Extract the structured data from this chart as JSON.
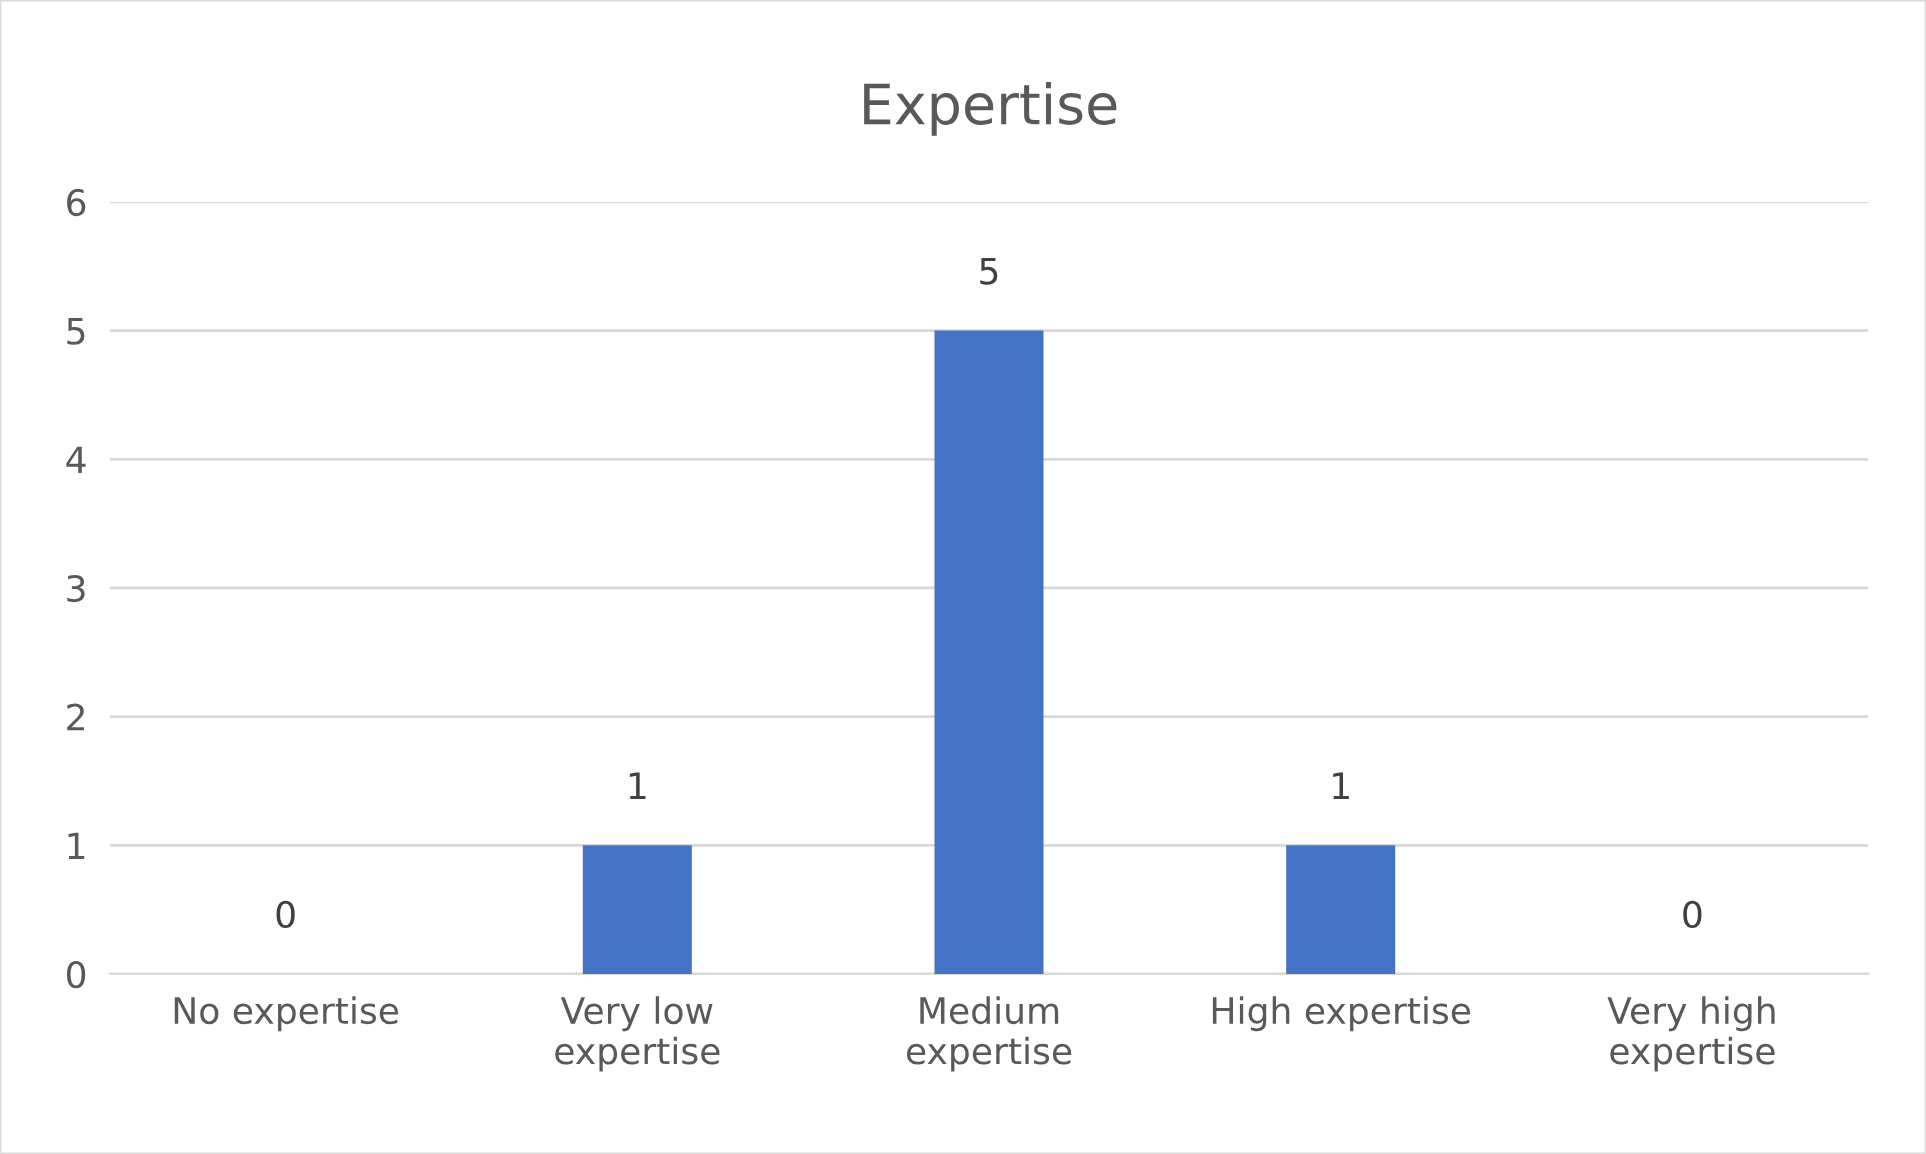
{
  "chart_data": {
    "type": "bar",
    "title": "Expertise",
    "categories": [
      "No expertise",
      "Very low\nexpertise",
      "Medium\nexpertise",
      "High expertise",
      "Very high\nexpertise"
    ],
    "values": [
      0,
      1,
      5,
      1,
      0
    ],
    "color": "#4472c4",
    "ylim": [
      0,
      6
    ],
    "yticks": [
      0,
      1,
      2,
      3,
      4,
      5,
      6
    ],
    "grid": "y",
    "data_labels": true
  }
}
